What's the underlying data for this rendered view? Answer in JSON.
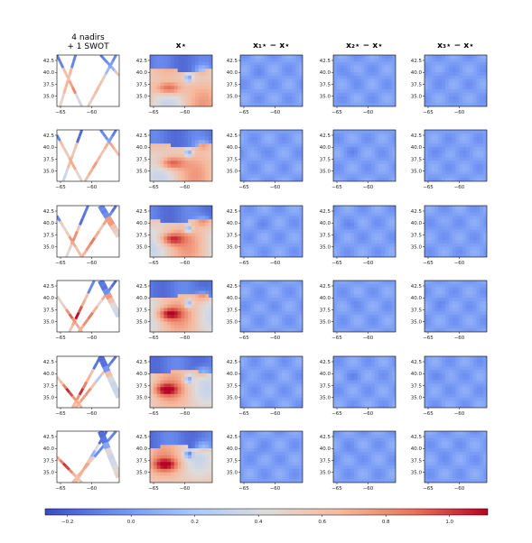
{
  "chart_data": {
    "type": "heatmap",
    "columns": [
      {
        "title_line1": "4 nadirs",
        "title_line2": "+ 1 SWOT",
        "kind": "obs"
      },
      {
        "title_line1": "x⋆",
        "title_line2": "",
        "kind": "truth"
      },
      {
        "title_line1": "x₁⋆ − x⋆",
        "title_line2": "",
        "kind": "diff"
      },
      {
        "title_line1": "x₂⋆ − x⋆",
        "title_line2": "",
        "kind": "diff"
      },
      {
        "title_line1": "x₃⋆ − x⋆",
        "title_line2": "",
        "kind": "diff"
      }
    ],
    "rows": 6,
    "x_ticks": [
      "−65",
      "−60"
    ],
    "y_ticks": [
      "42.5",
      "40.0",
      "37.5",
      "35.0"
    ],
    "xlim": [
      -65,
      -55
    ],
    "ylim": [
      33,
      44
    ],
    "colorbar": {
      "ticks": [
        "−0.2",
        "0.0",
        "0.2",
        "0.4",
        "0.6",
        "0.8",
        "1.0"
      ],
      "range": [
        -0.27,
        1.12
      ],
      "colormap": "coolwarm",
      "colors": [
        "#3b4cc0",
        "#6f92f3",
        "#aac7fd",
        "#dddcdc",
        "#f7b89c",
        "#e7745b",
        "#b40426"
      ]
    }
  }
}
